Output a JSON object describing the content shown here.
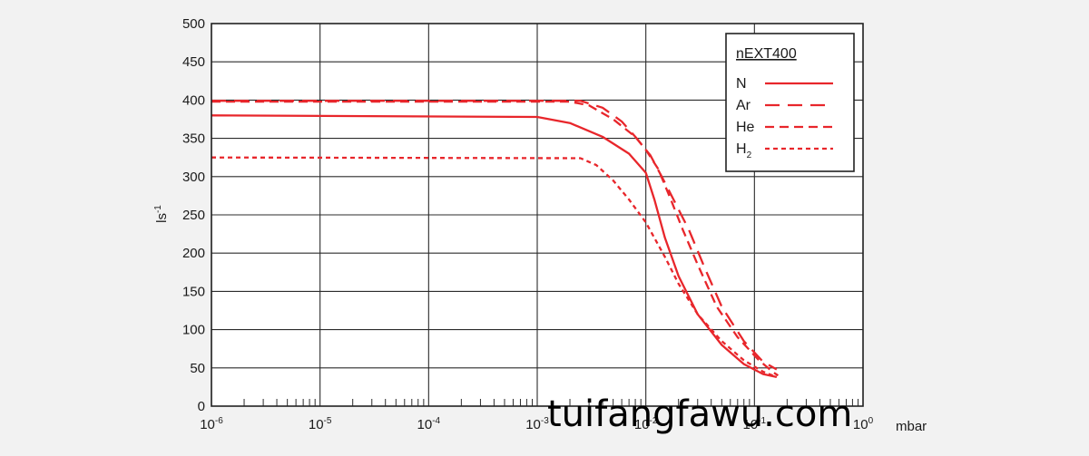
{
  "chart_data": {
    "type": "line",
    "title": "",
    "xlabel": "mbar",
    "ylabel": "ls-1",
    "x_scale": "log",
    "xlim": [
      1e-06,
      1
    ],
    "ylim": [
      0,
      500
    ],
    "grid": true,
    "y_ticks": [
      "0",
      "50",
      "100",
      "150",
      "200",
      "250",
      "300",
      "350",
      "400",
      "450",
      "500"
    ],
    "x_ticks": [
      {
        "base": "10",
        "exp": "-6"
      },
      {
        "base": "10",
        "exp": "-5"
      },
      {
        "base": "10",
        "exp": "-4"
      },
      {
        "base": "10",
        "exp": "-3"
      },
      {
        "base": "10",
        "exp": "-2"
      },
      {
        "base": "10",
        "exp": "-1"
      },
      {
        "base": "10",
        "exp": "0"
      }
    ],
    "legend": {
      "title": "nEXT400",
      "position": "top-right",
      "entries": [
        {
          "label": "N",
          "sub": ""
        },
        {
          "label": "Ar",
          "sub": ""
        },
        {
          "label": "He",
          "sub": ""
        },
        {
          "label": "H",
          "sub": "2"
        }
      ]
    },
    "series": [
      {
        "name": "N",
        "color": "#e8262b",
        "dash": "solid",
        "points": [
          [
            1e-06,
            380
          ],
          [
            0.001,
            378
          ],
          [
            0.002,
            370
          ],
          [
            0.004,
            352
          ],
          [
            0.007,
            330
          ],
          [
            0.01,
            305
          ],
          [
            0.012,
            270
          ],
          [
            0.015,
            220
          ],
          [
            0.02,
            170
          ],
          [
            0.03,
            120
          ],
          [
            0.05,
            80
          ],
          [
            0.08,
            55
          ],
          [
            0.12,
            42
          ],
          [
            0.16,
            38
          ]
        ]
      },
      {
        "name": "Ar",
        "color": "#e8262b",
        "dash": "long",
        "points": [
          [
            1e-06,
            399
          ],
          [
            0.0025,
            399
          ],
          [
            0.004,
            390
          ],
          [
            0.006,
            372
          ],
          [
            0.008,
            352
          ],
          [
            0.011,
            328
          ],
          [
            0.014,
            300
          ],
          [
            0.018,
            270
          ],
          [
            0.025,
            230
          ],
          [
            0.035,
            180
          ],
          [
            0.05,
            130
          ],
          [
            0.08,
            85
          ],
          [
            0.12,
            58
          ],
          [
            0.16,
            48
          ]
        ]
      },
      {
        "name": "He",
        "color": "#e8262b",
        "dash": "medium",
        "points": [
          [
            1e-06,
            398
          ],
          [
            0.002,
            398
          ],
          [
            0.003,
            393
          ],
          [
            0.005,
            375
          ],
          [
            0.008,
            352
          ],
          [
            0.01,
            335
          ],
          [
            0.013,
            310
          ],
          [
            0.017,
            270
          ],
          [
            0.022,
            230
          ],
          [
            0.03,
            185
          ],
          [
            0.045,
            130
          ],
          [
            0.07,
            90
          ],
          [
            0.11,
            60
          ],
          [
            0.15,
            44
          ],
          [
            0.165,
            40
          ]
        ]
      },
      {
        "name": "H2",
        "color": "#e8262b",
        "dash": "short",
        "points": [
          [
            1e-06,
            325
          ],
          [
            0.0025,
            324
          ],
          [
            0.0035,
            315
          ],
          [
            0.005,
            295
          ],
          [
            0.007,
            270
          ],
          [
            0.01,
            240
          ],
          [
            0.015,
            195
          ],
          [
            0.02,
            160
          ],
          [
            0.03,
            120
          ],
          [
            0.05,
            85
          ],
          [
            0.08,
            60
          ],
          [
            0.12,
            45
          ],
          [
            0.16,
            38
          ]
        ]
      }
    ]
  },
  "watermark": "tuifangfawu.com"
}
